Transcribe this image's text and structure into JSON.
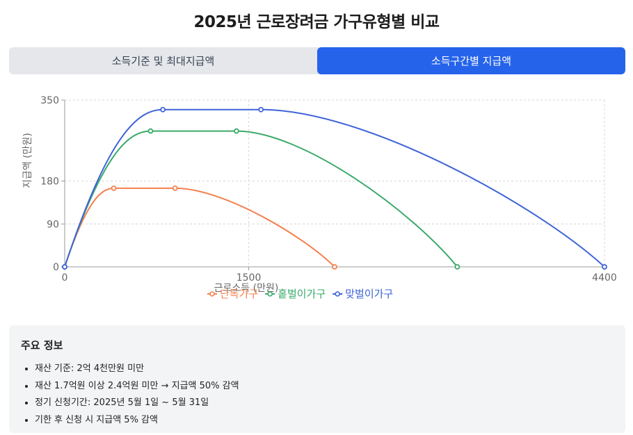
{
  "page_title": "2025년 근로장려금 가구유형별 비교",
  "tabs": [
    {
      "label": "소득기준 및 최대지급액",
      "active": false
    },
    {
      "label": "소득구간별 지급액",
      "active": true
    }
  ],
  "colors": {
    "accent": "#2563eb",
    "single": "#f4804e",
    "single_earner": "#3aaa6a",
    "dual_earner": "#3e63d8"
  },
  "chart_data": {
    "type": "line",
    "xlabel": "근로소득 (만원)",
    "ylabel": "지급액 (만원)",
    "xlim": [
      0,
      4400
    ],
    "ylim": [
      0,
      350
    ],
    "x_ticks": [
      0,
      1500,
      4400
    ],
    "y_ticks": [
      0,
      90,
      180,
      350
    ],
    "grid": true,
    "legend_position": "bottom",
    "series": [
      {
        "name": "단독가구",
        "color": "#f4804e",
        "points": [
          [
            0,
            0
          ],
          [
            400,
            165
          ],
          [
            900,
            165
          ],
          [
            2200,
            0
          ]
        ]
      },
      {
        "name": "홑벌이가구",
        "color": "#3aaa6a",
        "points": [
          [
            0,
            0
          ],
          [
            700,
            285
          ],
          [
            1400,
            285
          ],
          [
            3200,
            0
          ]
        ]
      },
      {
        "name": "맞벌이가구",
        "color": "#3e63d8",
        "points": [
          [
            0,
            0
          ],
          [
            800,
            330
          ],
          [
            1600,
            330
          ],
          [
            4400,
            0
          ]
        ]
      }
    ]
  },
  "info": {
    "title": "주요 정보",
    "items": [
      "재산 기준: 2억 4천만원 미만",
      "재산 1.7억원 이상 2.4억원 미만 → 지급액 50% 감액",
      "정기 신청기간: 2025년 5월 1일 ~ 5월 31일",
      "기한 후 신청 시 지급액 5% 감액"
    ]
  }
}
